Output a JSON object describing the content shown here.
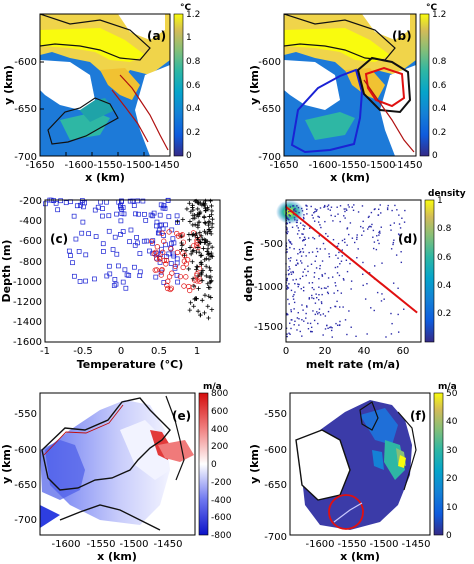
{
  "figure": {
    "panel_labels": [
      "(a)",
      "(b)",
      "(c)",
      "(d)",
      "(e)",
      "(f)"
    ]
  },
  "chart_data": [
    {
      "id": "a",
      "type": "heatmap",
      "label": "(a)",
      "xlabel": "x (km)",
      "ylabel": "y (km)",
      "xlim": [
        -1650,
        -1400
      ],
      "ylim": [
        -700,
        -550
      ],
      "xticks": [
        "-1650",
        "-1600",
        "-1550",
        "-1500",
        "-1450"
      ],
      "yticks": [
        "-600",
        "-650",
        "-700"
      ],
      "colorbar": {
        "unit": "°C",
        "min": 0,
        "max": 1.2,
        "ticks": [
          "1.2",
          "1",
          "0.8",
          "0.6",
          "0.4",
          "0.2",
          "0"
        ],
        "colormap": "parula"
      }
    },
    {
      "id": "b",
      "type": "heatmap",
      "label": "(b)",
      "xlabel": "x (km)",
      "ylabel": "y (km)",
      "xlim": [
        -1650,
        -1400
      ],
      "ylim": [
        -700,
        -550
      ],
      "xticks": [
        "-1650",
        "-1600",
        "-1550",
        "-1500",
        "-1450"
      ],
      "yticks": [
        "-600",
        "-650",
        "-700"
      ],
      "colorbar": {
        "unit": "°C",
        "min": 0,
        "max": 1.2,
        "ticks": [
          "1.2",
          "0.8",
          "0.6",
          "0.4",
          "0.2",
          "0"
        ],
        "colormap": "parula"
      },
      "overlay_colors": {
        "region_1": "#1a22d4",
        "region_2": "#e01010",
        "region_3": "#111111"
      }
    },
    {
      "id": "c",
      "type": "scatter",
      "label": "(c)",
      "xlabel": "Temperature (°C)",
      "ylabel": "Depth (m)",
      "xlim": [
        -1,
        1.3
      ],
      "ylim": [
        -1600,
        -200
      ],
      "xticks": [
        "-1",
        "-0.5",
        "0",
        "0.5",
        "1"
      ],
      "yticks": [
        "-200",
        "-400",
        "-600",
        "-800",
        "-1000",
        "-1200",
        "-1400",
        "-1600"
      ],
      "series": [
        {
          "marker": "square",
          "color": "#1a22d4",
          "depth_range": [
            -1100,
            -200
          ],
          "temperature_range": [
            -1,
            0.75
          ]
        },
        {
          "marker": "circle",
          "color": "#e01010",
          "depth_range": [
            -1100,
            -500
          ],
          "temperature_range": [
            0.4,
            1.05
          ]
        },
        {
          "marker": "plus",
          "color": "#000000",
          "depth_range": [
            -1400,
            -200
          ],
          "temperature_range": [
            0.65,
            1.2
          ]
        }
      ]
    },
    {
      "id": "d",
      "type": "scatter",
      "label": "(d)",
      "xlabel": "melt rate (m/a)",
      "ylabel": "depth (m)",
      "xlim": [
        0,
        70
      ],
      "ylim": [
        -1700,
        -250
      ],
      "xticks": [
        "0",
        "20",
        "40",
        "60"
      ],
      "yticks": [
        "-500",
        "-1000",
        "-1500"
      ],
      "colorbar": {
        "title": "density",
        "min": 0,
        "max": 1,
        "ticks": [
          "1",
          "0.8",
          "0.6",
          "0.4",
          "0.2"
        ],
        "colormap": "parula"
      },
      "fit_line": {
        "color": "#e01010",
        "points": [
          [
            0,
            -320
          ],
          [
            68,
            -1400
          ]
        ]
      }
    },
    {
      "id": "e",
      "type": "heatmap",
      "label": "(e)",
      "xlabel": "x (km)",
      "ylabel": "y (km)",
      "xlim": [
        -1650,
        -1400
      ],
      "ylim": [
        -725,
        -525
      ],
      "xticks": [
        "-1600",
        "-1550",
        "-1500",
        "-1450"
      ],
      "yticks": [
        "-550",
        "-600",
        "-650",
        "-700"
      ],
      "colorbar": {
        "unit": "m/a",
        "min": -800,
        "max": 800,
        "ticks": [
          "800",
          "600",
          "400",
          "200",
          "0",
          "-200",
          "-400",
          "-600",
          "-800"
        ],
        "colormap": "blue-white-red"
      }
    },
    {
      "id": "f",
      "type": "heatmap",
      "label": "(f)",
      "xlabel": "x (km)",
      "ylabel": "y (km)",
      "xlim": [
        -1650,
        -1425
      ],
      "ylim": [
        -705,
        -505
      ],
      "xticks": [
        "-1600",
        "-1550",
        "-1500",
        "-1450"
      ],
      "yticks": [
        "-550",
        "-600",
        "-650",
        "-700"
      ],
      "colorbar": {
        "unit": "m/a",
        "min": 0,
        "max": 50,
        "ticks": [
          "50",
          "40",
          "30",
          "20",
          "10",
          "0"
        ],
        "colormap": "parula"
      }
    }
  ]
}
